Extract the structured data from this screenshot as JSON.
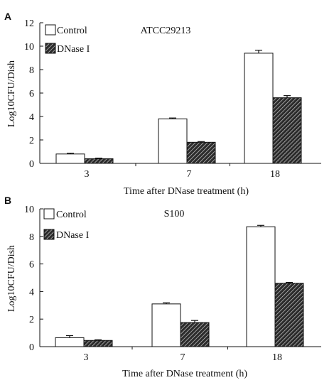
{
  "chart_data": [
    {
      "type": "bar",
      "panel_label": "A",
      "annotation": "ATCC29213",
      "categories": [
        "3",
        "7",
        "18"
      ],
      "series": [
        {
          "name": "Control",
          "values": [
            0.8,
            3.8,
            9.4
          ],
          "errors": [
            0.07,
            0.07,
            0.25
          ]
        },
        {
          "name": "DNase I",
          "values": [
            0.4,
            1.8,
            5.6
          ],
          "errors": [
            0.05,
            0.06,
            0.18
          ]
        }
      ],
      "xlabel": "Time after DNase treatment (h)",
      "ylabel": "Log10CFU/Dish",
      "ylim": [
        0,
        12
      ],
      "yticks": [
        0,
        2,
        4,
        6,
        8,
        10,
        12
      ],
      "legend_position": "top-left",
      "grid": false
    },
    {
      "type": "bar",
      "panel_label": "B",
      "annotation": "S100",
      "categories": [
        "3",
        "7",
        "18"
      ],
      "series": [
        {
          "name": "Control",
          "values": [
            0.65,
            3.1,
            8.7
          ],
          "errors": [
            0.15,
            0.08,
            0.1
          ]
        },
        {
          "name": "DNase I",
          "values": [
            0.45,
            1.75,
            4.6
          ],
          "errors": [
            0.05,
            0.15,
            0.06
          ]
        }
      ],
      "xlabel": "Time after DNase treatment (h)",
      "ylabel": "Log10CFU/Dish",
      "ylim": [
        0,
        10
      ],
      "yticks": [
        0,
        2,
        4,
        6,
        8,
        10
      ],
      "legend_position": "top-left",
      "grid": false
    }
  ]
}
